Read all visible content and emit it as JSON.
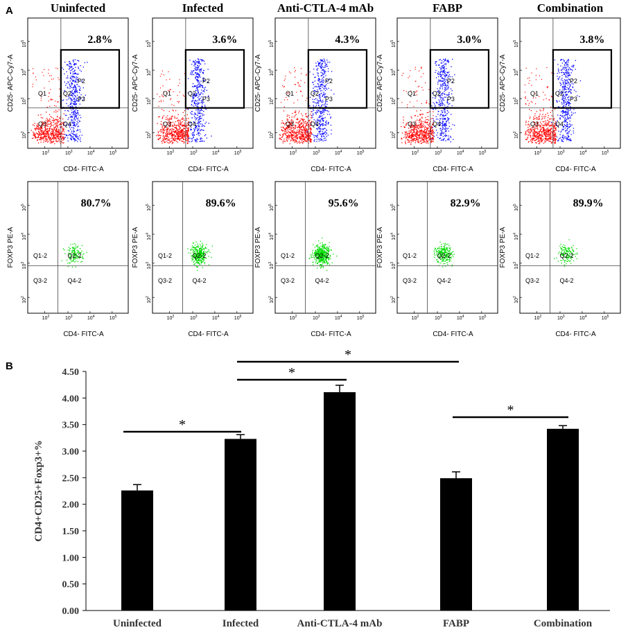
{
  "panel_a": {
    "label": "A",
    "groups": [
      "Uninfected",
      "Infected",
      "Anti-CTLA-4 mAb",
      "FABP",
      "Combination"
    ],
    "top_row": {
      "y_axis_label": "CD25- APC-Cy7-A",
      "x_axis_label": "CD4- FITC-A",
      "gate_percent": [
        "2.8%",
        "3.6%",
        "4.3%",
        "3.0%",
        "3.8%"
      ],
      "quadrants": [
        "Q1",
        "Q2",
        "Q3",
        "Q4"
      ],
      "gates": [
        "P2",
        "P3"
      ],
      "tick_labels": [
        "10",
        "2",
        "3",
        "4",
        "5"
      ],
      "negative_color": "#ff0000",
      "positive_color": "#0000ff"
    },
    "bottom_row": {
      "y_axis_label": "FOXP3 PE-A",
      "x_axis_label": "CD4- FITC-A",
      "gate_percent": [
        "80.7%",
        "89.6%",
        "95.6%",
        "82.9%",
        "89.9%"
      ],
      "quadrants": [
        "Q1-2",
        "Q2-2",
        "Q3-2",
        "Q4-2"
      ],
      "event_color": "#00dd00"
    }
  },
  "chart_data": {
    "panel_label": "B",
    "type": "bar",
    "categories": [
      "Uninfected",
      "Infected",
      "Anti-CTLA-4 mAb",
      "FABP",
      "Combination"
    ],
    "values": [
      2.26,
      3.23,
      4.11,
      2.49,
      3.42
    ],
    "errors": [
      0.11,
      0.08,
      0.13,
      0.12,
      0.06
    ],
    "ylabel": "CD4+CD25+Foxp3+%",
    "ylim": [
      0,
      4.5
    ],
    "yticks": [
      "0.00",
      "0.50",
      "1.00",
      "1.50",
      "2.00",
      "2.50",
      "3.00",
      "3.50",
      "4.00",
      "4.50"
    ],
    "bar_color": "#000000",
    "significance": [
      {
        "from": 0,
        "to": 1,
        "label": "*"
      },
      {
        "from": 1,
        "to": 2,
        "label": "*"
      },
      {
        "from": 1,
        "to": 3,
        "label": "*"
      },
      {
        "from": 3,
        "to": 4,
        "label": "*"
      }
    ]
  }
}
